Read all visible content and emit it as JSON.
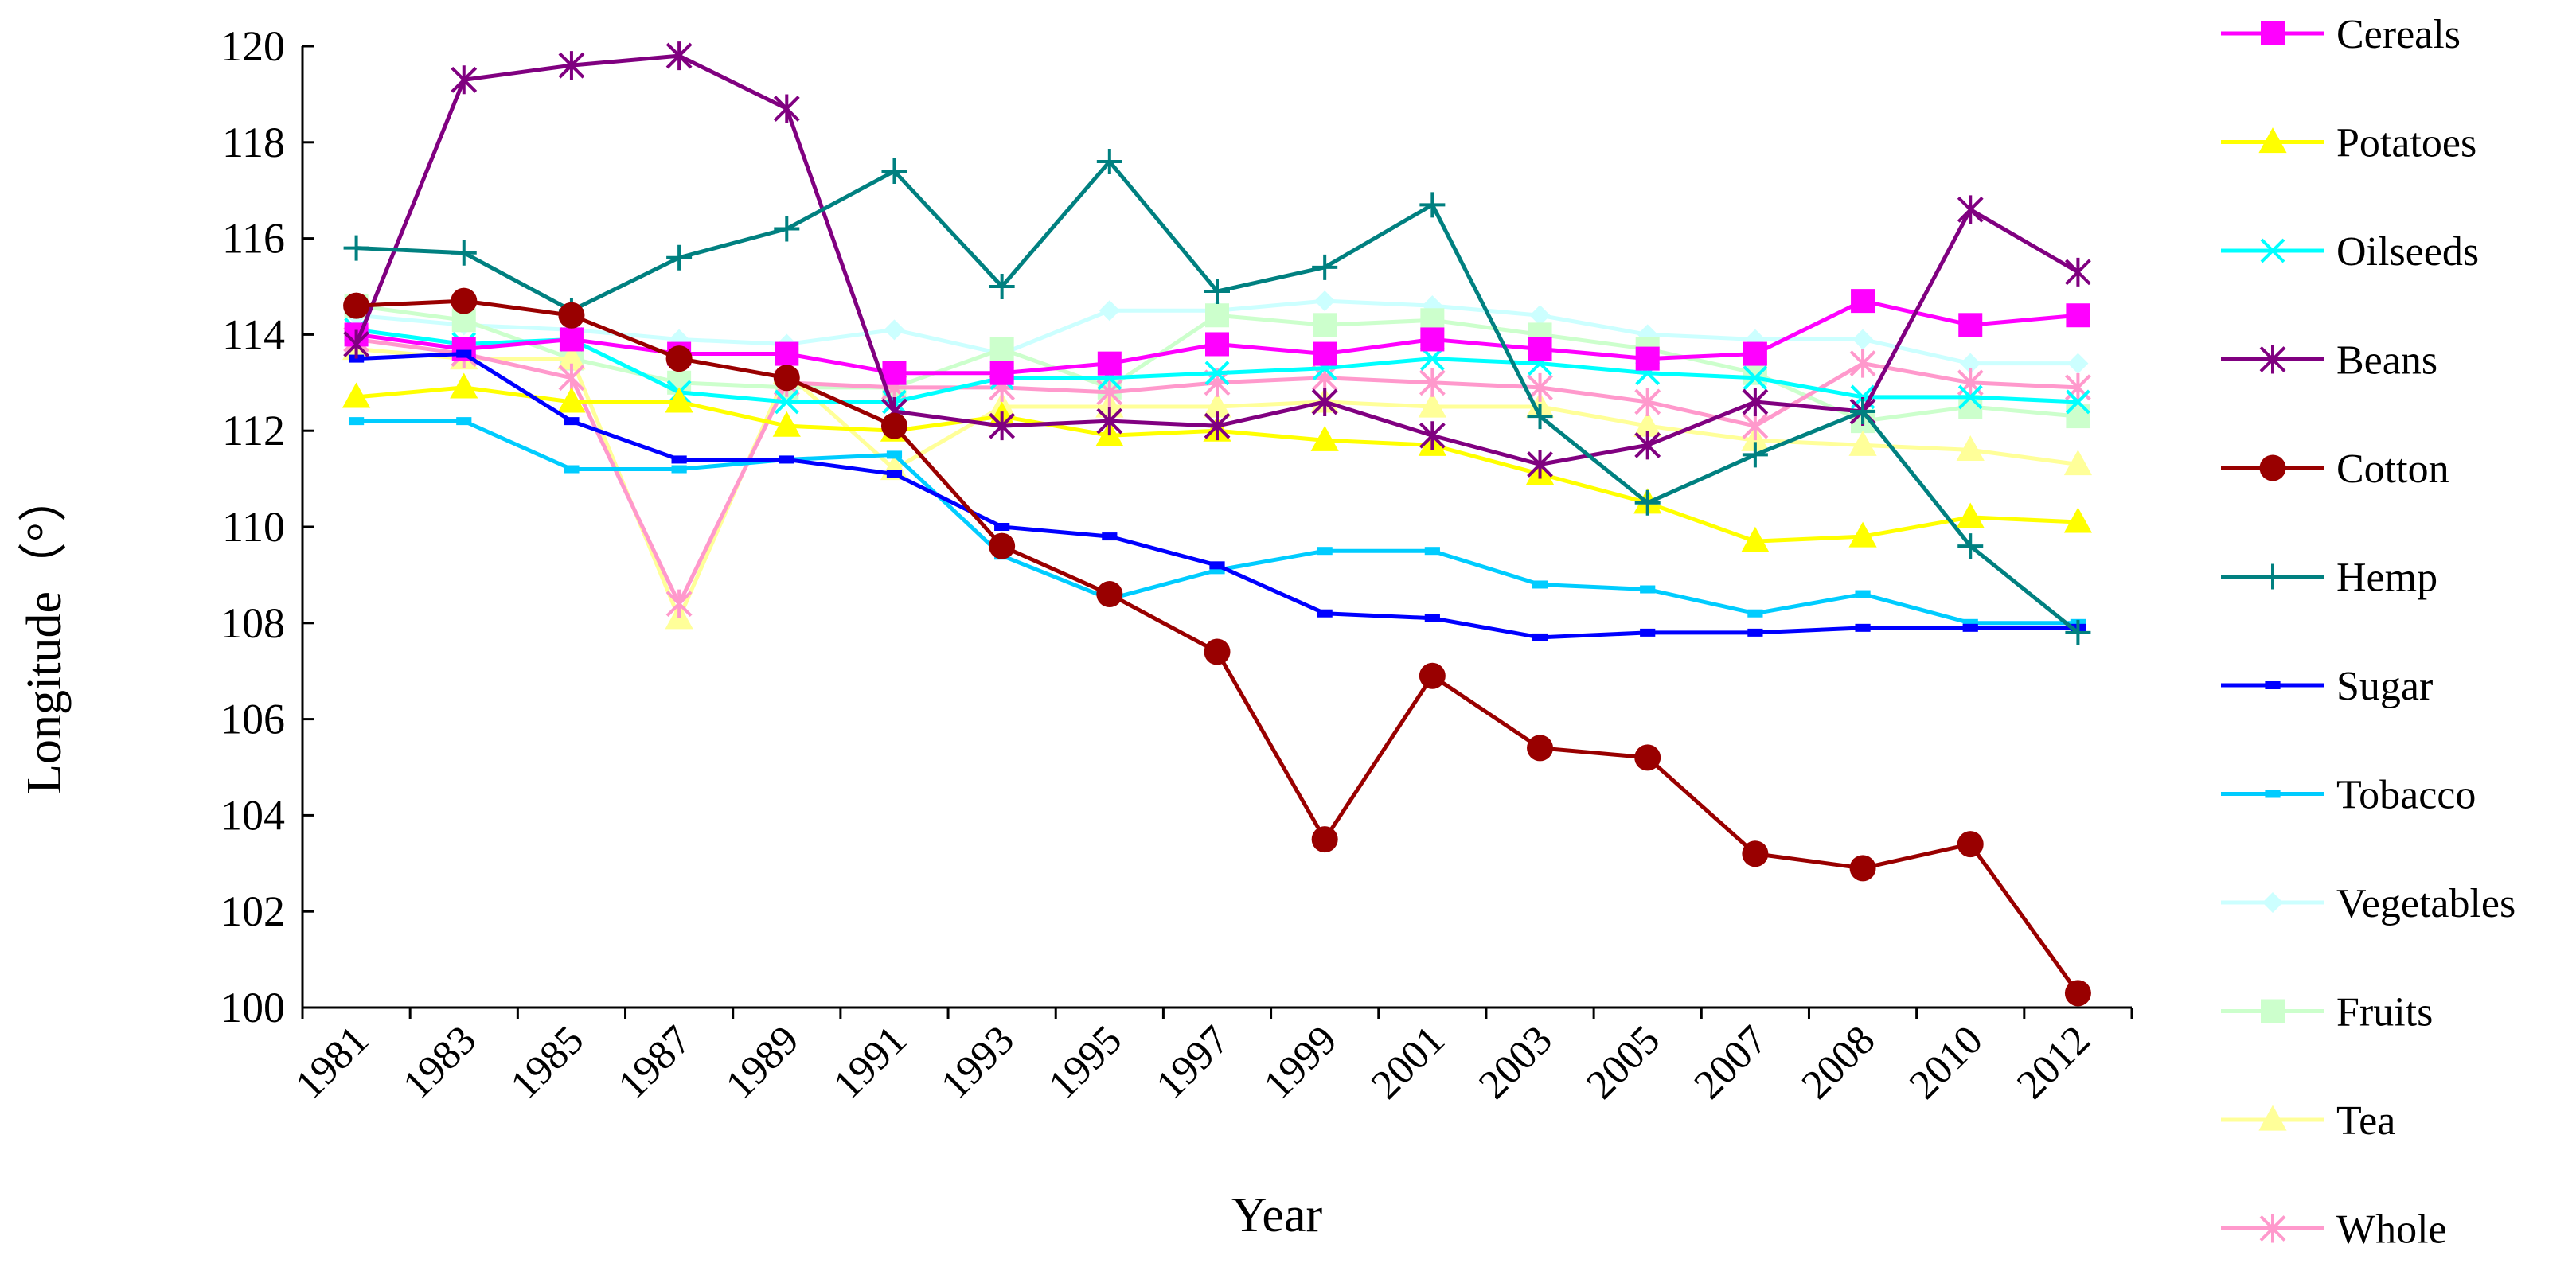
{
  "chart_data": {
    "type": "line",
    "title": "",
    "xlabel": "Year",
    "ylabel": "Longitude（°）",
    "ylim": [
      100,
      120
    ],
    "yticks": [
      "100",
      "102",
      "104",
      "106",
      "108",
      "110",
      "112",
      "114",
      "116",
      "118",
      "120"
    ],
    "categories": [
      "1981",
      "1983",
      "1985",
      "1987",
      "1989",
      "1991",
      "1993",
      "1995",
      "1997",
      "1999",
      "2001",
      "2003",
      "2005",
      "2007",
      "2008",
      "2010",
      "2012"
    ],
    "grid": false,
    "legend_position": "right",
    "series": [
      {
        "name": "Cereals",
        "color": "#ff00ff",
        "marker": "square",
        "values": [
          114.0,
          113.7,
          113.9,
          113.6,
          113.6,
          113.2,
          113.2,
          113.4,
          113.8,
          113.6,
          113.9,
          113.7,
          113.5,
          113.6,
          114.7,
          114.2,
          114.4
        ]
      },
      {
        "name": "Potatoes",
        "color": "#ffff00",
        "marker": "triangle",
        "values": [
          112.7,
          112.9,
          112.6,
          112.6,
          112.1,
          112.0,
          112.3,
          111.9,
          112.0,
          111.8,
          111.7,
          111.1,
          110.5,
          109.7,
          109.8,
          110.2,
          110.1
        ]
      },
      {
        "name": "Oilseeds",
        "color": "#00ffff",
        "marker": "x",
        "values": [
          114.1,
          113.8,
          113.9,
          112.8,
          112.6,
          112.6,
          113.1,
          113.1,
          113.2,
          113.3,
          113.5,
          113.4,
          113.2,
          113.1,
          112.7,
          112.7,
          112.6
        ]
      },
      {
        "name": "Beans",
        "color": "#800080",
        "marker": "asterisk",
        "values": [
          113.8,
          119.3,
          119.6,
          119.8,
          118.7,
          112.4,
          112.1,
          112.2,
          112.1,
          112.6,
          111.9,
          111.3,
          111.7,
          112.6,
          112.4,
          116.6,
          115.3
        ]
      },
      {
        "name": "Cotton",
        "color": "#990000",
        "marker": "circle",
        "values": [
          114.6,
          114.7,
          114.4,
          113.5,
          113.1,
          112.1,
          109.6,
          108.6,
          107.4,
          103.5,
          106.9,
          105.4,
          105.2,
          103.2,
          102.9,
          103.4,
          100.3
        ]
      },
      {
        "name": "Hemp",
        "color": "#008080",
        "marker": "plus",
        "values": [
          115.8,
          115.7,
          114.5,
          115.6,
          116.2,
          117.4,
          115.0,
          117.6,
          114.9,
          115.4,
          116.7,
          112.3,
          110.5,
          111.5,
          112.4,
          109.6,
          107.8
        ]
      },
      {
        "name": "Sugar",
        "color": "#0000ff",
        "marker": "dash",
        "values": [
          113.5,
          113.6,
          112.2,
          111.4,
          111.4,
          111.1,
          110.0,
          109.8,
          109.2,
          108.2,
          108.1,
          107.7,
          107.8,
          107.8,
          107.9,
          107.9,
          107.9
        ]
      },
      {
        "name": "Tobacco",
        "color": "#00ccff",
        "marker": "dash",
        "values": [
          112.2,
          112.2,
          111.2,
          111.2,
          111.4,
          111.5,
          109.4,
          108.5,
          109.1,
          109.5,
          109.5,
          108.8,
          108.7,
          108.2,
          108.6,
          108.0,
          108.0
        ]
      },
      {
        "name": "Vegetables",
        "color": "#ccffff",
        "marker": "diamond",
        "values": [
          114.4,
          114.2,
          114.1,
          113.9,
          113.8,
          114.1,
          113.6,
          114.5,
          114.5,
          114.7,
          114.6,
          114.4,
          114.0,
          113.9,
          113.9,
          113.4,
          113.4
        ]
      },
      {
        "name": "Fruits",
        "color": "#ccffcc",
        "marker": "square",
        "values": [
          114.6,
          114.3,
          113.5,
          113.0,
          112.9,
          112.9,
          113.7,
          112.9,
          114.4,
          114.2,
          114.3,
          114.0,
          113.7,
          113.2,
          112.2,
          112.5,
          112.3
        ]
      },
      {
        "name": "Tea",
        "color": "#ffff99",
        "marker": "triangle",
        "values": [
          113.7,
          113.5,
          113.5,
          108.1,
          113.2,
          111.2,
          112.5,
          112.5,
          112.5,
          112.6,
          112.5,
          112.5,
          112.1,
          111.8,
          111.7,
          111.6,
          111.3
        ]
      },
      {
        "name": "Whole",
        "color": "#ff99cc",
        "marker": "asterisk",
        "values": [
          113.9,
          113.6,
          113.1,
          108.4,
          113.0,
          112.9,
          112.9,
          112.8,
          113.0,
          113.1,
          113.0,
          112.9,
          112.6,
          112.1,
          113.4,
          113.0,
          112.9
        ]
      }
    ]
  }
}
